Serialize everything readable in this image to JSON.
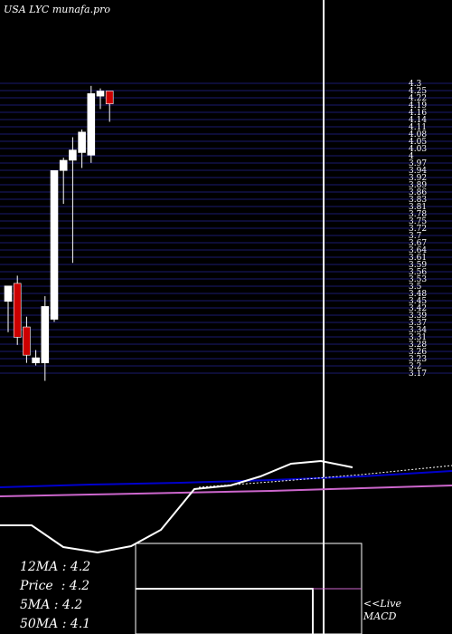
{
  "title": "USA LYC munafa.pro",
  "chart_data": {
    "type": "candlestick",
    "y_ticks": [
      "4.3",
      "4.25",
      "4.22",
      "4.19",
      "4.16",
      "4.14",
      "4.11",
      "4.08",
      "4.05",
      "4.03",
      "4",
      "3.97",
      "3.94",
      "3.92",
      "3.89",
      "3.86",
      "3.83",
      "3.81",
      "3.78",
      "3.75",
      "3.72",
      "3.7",
      "3.67",
      "3.64",
      "3.61",
      "3.59",
      "3.56",
      "3.53",
      "3.5",
      "3.48",
      "3.45",
      "3.42",
      "3.39",
      "3.37",
      "3.34",
      "3.31",
      "3.28",
      "3.26",
      "3.23",
      "3.2",
      "3.17"
    ],
    "ylim": [
      3.17,
      4.3
    ],
    "candles": [
      {
        "open": 3.45,
        "high": 3.51,
        "low": 3.33,
        "close": 3.51,
        "color": "white"
      },
      {
        "open": 3.52,
        "high": 3.55,
        "low": 3.28,
        "close": 3.31,
        "color": "red"
      },
      {
        "open": 3.35,
        "high": 3.39,
        "low": 3.21,
        "close": 3.24,
        "color": "red"
      },
      {
        "open": 3.21,
        "high": 3.26,
        "low": 3.2,
        "close": 3.23,
        "color": "white"
      },
      {
        "open": 3.21,
        "high": 3.47,
        "low": 3.14,
        "close": 3.43,
        "color": "white"
      },
      {
        "open": 3.38,
        "high": 3.96,
        "low": 3.37,
        "close": 3.96,
        "color": "white"
      },
      {
        "open": 3.96,
        "high": 4.01,
        "low": 3.83,
        "close": 4.0,
        "color": "white"
      },
      {
        "open": 4.0,
        "high": 4.09,
        "low": 3.6,
        "close": 4.04,
        "color": "white"
      },
      {
        "open": 4.03,
        "high": 4.12,
        "low": 3.97,
        "close": 4.11,
        "color": "white"
      },
      {
        "open": 4.02,
        "high": 4.29,
        "low": 3.99,
        "close": 4.26,
        "color": "white"
      },
      {
        "open": 4.25,
        "high": 4.28,
        "low": 4.2,
        "close": 4.27,
        "color": "white"
      },
      {
        "open": 4.27,
        "high": 4.27,
        "low": 4.15,
        "close": 4.22,
        "color": "red"
      }
    ],
    "stats": [
      {
        "label": "12MA",
        "value": "4.2"
      },
      {
        "label": "Price",
        "value": "4.2"
      },
      {
        "label": "5MA",
        "value": "4.2"
      },
      {
        "label": "50MA",
        "value": "4.1"
      }
    ],
    "macd_label_1": "<<Live",
    "macd_label_2": "MACD",
    "colors": {
      "grid": "#1a1a6e",
      "up": "#ffffff",
      "down": "#cc0000",
      "ma_blue": "#0000cc",
      "ma_pink": "#cc66cc",
      "macd_line": "#ffffff"
    }
  }
}
